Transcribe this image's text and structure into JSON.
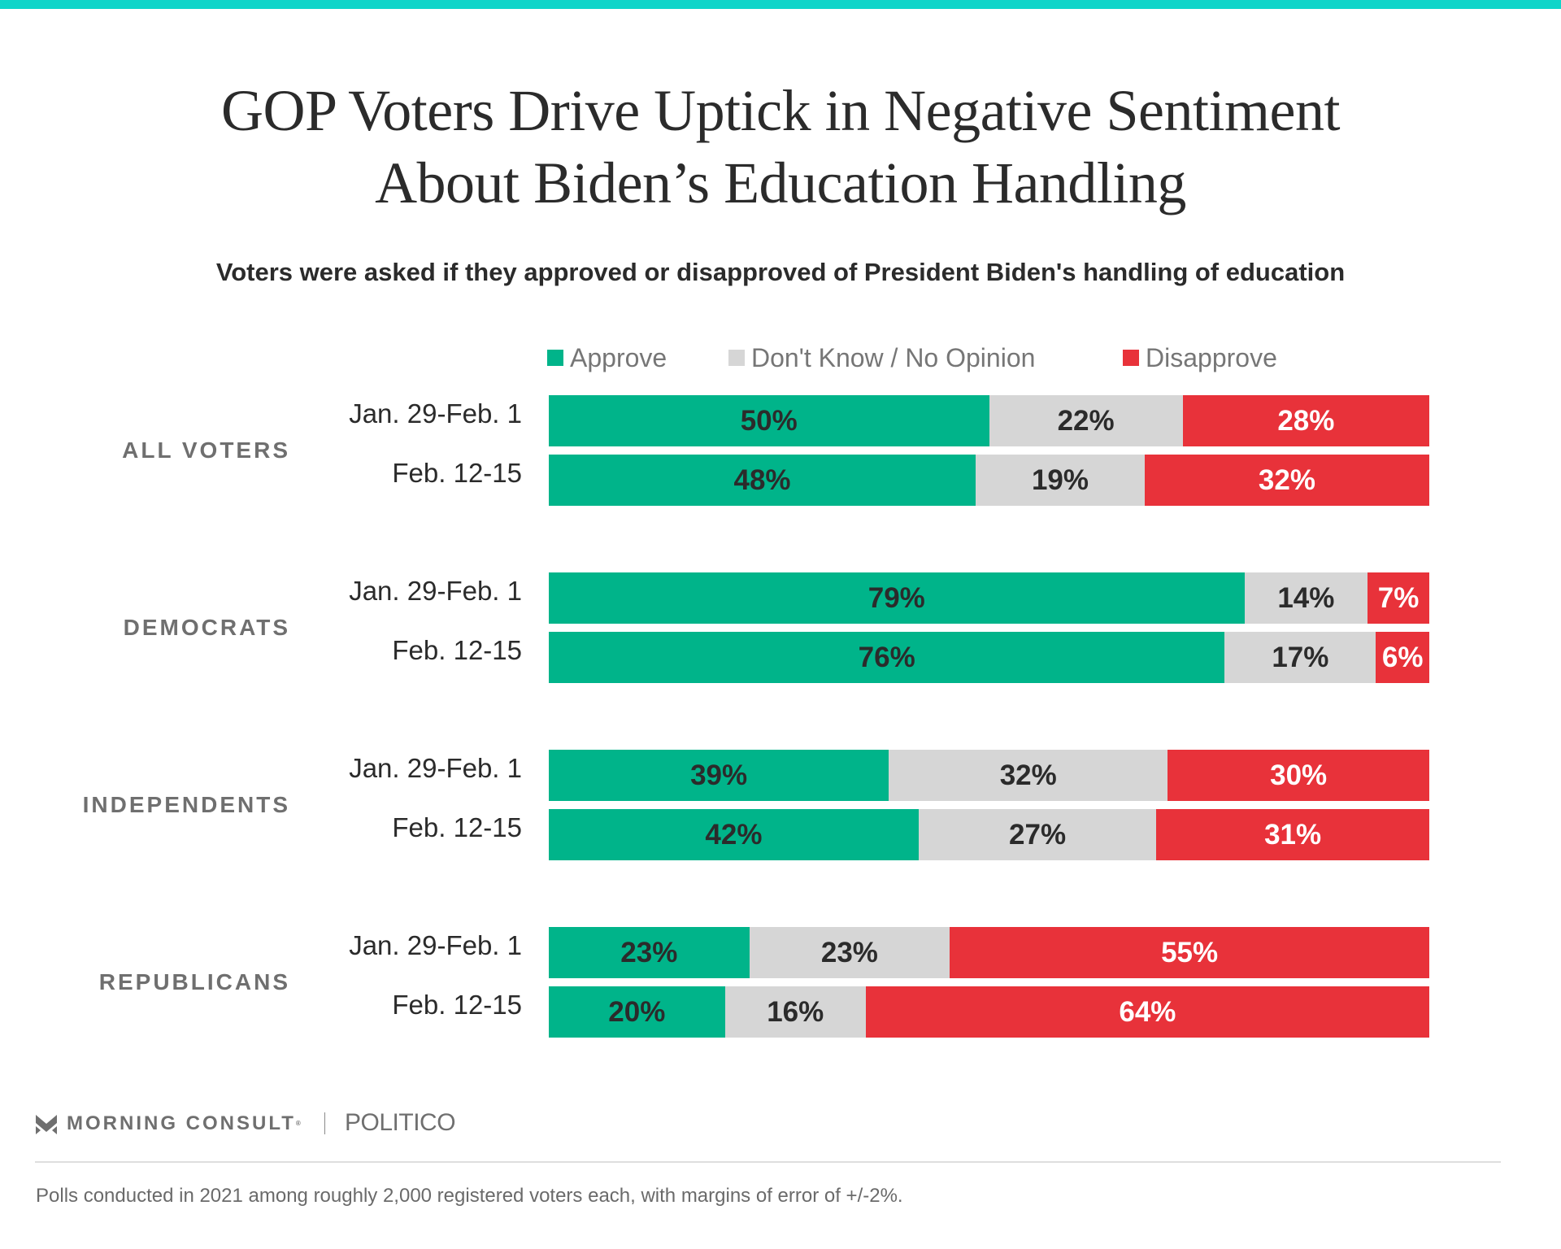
{
  "header": {
    "title_lines": [
      "GOP Voters Drive Uptick in Negative Sentiment",
      "About Biden’s Education Handling"
    ],
    "subtitle": "Voters were asked if they approved or disapproved of President Biden's handling of education"
  },
  "colors": {
    "top_stripe": "#10d5c9",
    "approve": "#00b48a",
    "dont_know": "#d6d6d6",
    "disapprove": "#e8323a",
    "label_dark": "#2b2b2b",
    "label_light": "#ffffff"
  },
  "chart_data": {
    "type": "bar",
    "orientation": "horizontal",
    "stacked": true,
    "title": "GOP Voters Drive Uptick in Negative Sentiment About Biden’s Education Handling",
    "subtitle": "Voters were asked if they approved or disapproved of President Biden's handling of education",
    "legend_position": "top",
    "unit": "%",
    "legend": [
      {
        "key": "approve",
        "label": "Approve",
        "color": "#00b48a"
      },
      {
        "key": "dont_know",
        "label": "Don't Know / No Opinion",
        "color": "#d6d6d6"
      },
      {
        "key": "disapprove",
        "label": "Disapprove",
        "color": "#e8323a"
      }
    ],
    "groups": [
      {
        "label": "ALL VOTERS",
        "rows": [
          {
            "period": "Jan. 29-Feb. 1",
            "approve": 50,
            "dont_know": 22,
            "disapprove": 28
          },
          {
            "period": "Feb. 12-15",
            "approve": 48,
            "dont_know": 19,
            "disapprove": 32
          }
        ]
      },
      {
        "label": "DEMOCRATS",
        "rows": [
          {
            "period": "Jan. 29-Feb. 1",
            "approve": 79,
            "dont_know": 14,
            "disapprove": 7
          },
          {
            "period": "Feb. 12-15",
            "approve": 76,
            "dont_know": 17,
            "disapprove": 6
          }
        ]
      },
      {
        "label": "INDEPENDENTS",
        "rows": [
          {
            "period": "Jan. 29-Feb. 1",
            "approve": 39,
            "dont_know": 32,
            "disapprove": 30
          },
          {
            "period": "Feb. 12-15",
            "approve": 42,
            "dont_know": 27,
            "disapprove": 31
          }
        ]
      },
      {
        "label": "REPUBLICANS",
        "rows": [
          {
            "period": "Jan. 29-Feb. 1",
            "approve": 23,
            "dont_know": 23,
            "disapprove": 55
          },
          {
            "period": "Feb. 12-15",
            "approve": 20,
            "dont_know": 16,
            "disapprove": 64
          }
        ]
      }
    ]
  },
  "footer": {
    "brand": "MORNING CONSULT",
    "brand_mark": "®",
    "partner": "POLITICO",
    "icon": "morning-consult-chevron-icon",
    "note": "Polls conducted in 2021 among roughly 2,000 registered voters each, with margins of error of +/-2%."
  }
}
